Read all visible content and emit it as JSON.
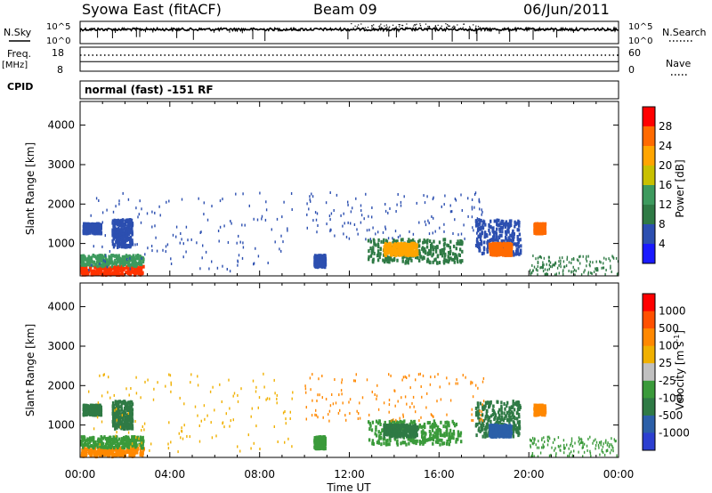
{
  "header": {
    "station": "Syowa East (fitACF)",
    "beam": "Beam 09",
    "date": "06/Jun/2011"
  },
  "left_labels": {
    "nsky": "N.Sky",
    "freq_top": "Freq.",
    "freq_unit": "[MHz]",
    "cpid": "CPID"
  },
  "right_labels": {
    "nsearch": "N.Search",
    "nave": "Nave"
  },
  "mode_text": "normal (fast) -151 RF",
  "chart_data": [
    {
      "type": "line",
      "panel": "noise",
      "left_axis": {
        "ticks": [
          "10^5",
          "10^0"
        ],
        "label": "N.Sky"
      },
      "right_axis": {
        "ticks": [
          "10^5",
          "10^0"
        ],
        "label": "N.Search"
      },
      "series": [
        {
          "name": "N.Sky",
          "style": "solid"
        },
        {
          "name": "N.Search",
          "style": "dotted"
        }
      ]
    },
    {
      "type": "line",
      "panel": "frequency",
      "left_axis": {
        "ticks": [
          "18",
          "8"
        ],
        "label": "Freq. [MHz]",
        "range": [
          8,
          18
        ]
      },
      "right_axis": {
        "ticks": [
          "60",
          "0"
        ],
        "label": "Nave",
        "range": [
          0,
          60
        ]
      },
      "series": [
        {
          "name": "Freq.",
          "style": "solid",
          "value": 12
        },
        {
          "name": "Nave",
          "style": "dotted",
          "value": 40
        }
      ]
    },
    {
      "type": "heatmap",
      "panel": "power",
      "ylabel": "Slant Range [km]",
      "yticks": [
        "4000",
        "3000",
        "2000",
        "1000"
      ],
      "ylim": [
        180,
        4600
      ],
      "xlim": [
        0,
        24
      ],
      "colorbar": {
        "label": "Power [dB]",
        "ticks": [
          "28",
          "24",
          "20",
          "16",
          "12",
          "8",
          "4"
        ],
        "colors": [
          "#1a1aff",
          "#2c4fb0",
          "#2f7a45",
          "#3d9a5e",
          "#c8c000",
          "#ffa500",
          "#ff6a00",
          "#ff0000"
        ]
      },
      "patches": [
        {
          "t": [
            0.0,
            2.8
          ],
          "r": [
            200,
            420
          ],
          "c": "#ff3300"
        },
        {
          "t": [
            0.0,
            2.8
          ],
          "r": [
            420,
            700
          ],
          "c": "#3d9a5e"
        },
        {
          "t": [
            0.1,
            0.9
          ],
          "r": [
            1250,
            1500
          ],
          "c": "#2c4fb0"
        },
        {
          "t": [
            1.4,
            2.3
          ],
          "r": [
            900,
            1600
          ],
          "c": "#2c4fb0"
        },
        {
          "t": [
            10.4,
            10.9
          ],
          "r": [
            400,
            700
          ],
          "c": "#2c4fb0"
        },
        {
          "t": [
            12.8,
            17.0
          ],
          "r": [
            500,
            1100
          ],
          "c": "#2f7a45"
        },
        {
          "t": [
            13.5,
            15.0
          ],
          "r": [
            700,
            1000
          ],
          "c": "#ffa500"
        },
        {
          "t": [
            17.6,
            19.6
          ],
          "r": [
            700,
            1600
          ],
          "c": "#2c4fb0"
        },
        {
          "t": [
            18.2,
            19.2
          ],
          "r": [
            700,
            1000
          ],
          "c": "#ff6a00"
        },
        {
          "t": [
            20.2,
            20.7
          ],
          "r": [
            1250,
            1500
          ],
          "c": "#ff6a00"
        },
        {
          "t": [
            10.0,
            18.0
          ],
          "r": [
            1100,
            2300
          ],
          "c": "#2c4fb0",
          "sparse": true
        },
        {
          "t": [
            0.3,
            9.5
          ],
          "r": [
            300,
            2300
          ],
          "c": "#2c4fb0",
          "sparse": true
        },
        {
          "t": [
            20.0,
            24.0
          ],
          "r": [
            200,
            700
          ],
          "c": "#2f7a45",
          "sparse": true
        }
      ]
    },
    {
      "type": "heatmap",
      "panel": "velocity",
      "ylabel": "Slant Range [km]",
      "yticks": [
        "4000",
        "3000",
        "2000",
        "1000"
      ],
      "ylim": [
        180,
        4600
      ],
      "xlim": [
        0,
        24
      ],
      "xticks": [
        "00:00",
        "04:00",
        "08:00",
        "12:00",
        "16:00",
        "20:00",
        "00:00"
      ],
      "xlabel": "Time UT",
      "colorbar": {
        "label": "Velocity [m s",
        "label_sup": "-1",
        "label_close": "]",
        "ticks": [
          "1000",
          "500",
          "100",
          "25",
          "-25",
          "-100",
          "-500",
          "-1000"
        ],
        "colors": [
          "#2c3fd0",
          "#2b5fa8",
          "#2f7a45",
          "#3a9a3a",
          "#c0c0c0",
          "#f0b000",
          "#ff8800",
          "#ff5000",
          "#ff0000"
        ]
      },
      "patches": [
        {
          "t": [
            0.0,
            2.8
          ],
          "r": [
            200,
            420
          ],
          "c": "#ff8800"
        },
        {
          "t": [
            0.0,
            2.8
          ],
          "r": [
            420,
            700
          ],
          "c": "#3a9a3a"
        },
        {
          "t": [
            0.1,
            0.9
          ],
          "r": [
            1250,
            1500
          ],
          "c": "#2f7a45"
        },
        {
          "t": [
            1.4,
            2.3
          ],
          "r": [
            900,
            1600
          ],
          "c": "#2f7a45"
        },
        {
          "t": [
            10.4,
            10.9
          ],
          "r": [
            400,
            700
          ],
          "c": "#3a9a3a"
        },
        {
          "t": [
            12.8,
            17.0
          ],
          "r": [
            500,
            1100
          ],
          "c": "#3a9a3a"
        },
        {
          "t": [
            13.5,
            15.0
          ],
          "r": [
            700,
            1000
          ],
          "c": "#2f7a45"
        },
        {
          "t": [
            17.6,
            19.6
          ],
          "r": [
            700,
            1600
          ],
          "c": "#2f7a45"
        },
        {
          "t": [
            18.2,
            19.2
          ],
          "r": [
            700,
            1000
          ],
          "c": "#2b5fa8"
        },
        {
          "t": [
            20.2,
            20.7
          ],
          "r": [
            1250,
            1500
          ],
          "c": "#ff8800"
        },
        {
          "t": [
            10.0,
            18.0
          ],
          "r": [
            1100,
            2300
          ],
          "c": "#ff8800",
          "sparse": true
        },
        {
          "t": [
            0.3,
            9.5
          ],
          "r": [
            300,
            2300
          ],
          "c": "#f0b000",
          "sparse": true
        },
        {
          "t": [
            20.0,
            24.0
          ],
          "r": [
            200,
            700
          ],
          "c": "#3a9a3a",
          "sparse": true
        }
      ]
    }
  ]
}
